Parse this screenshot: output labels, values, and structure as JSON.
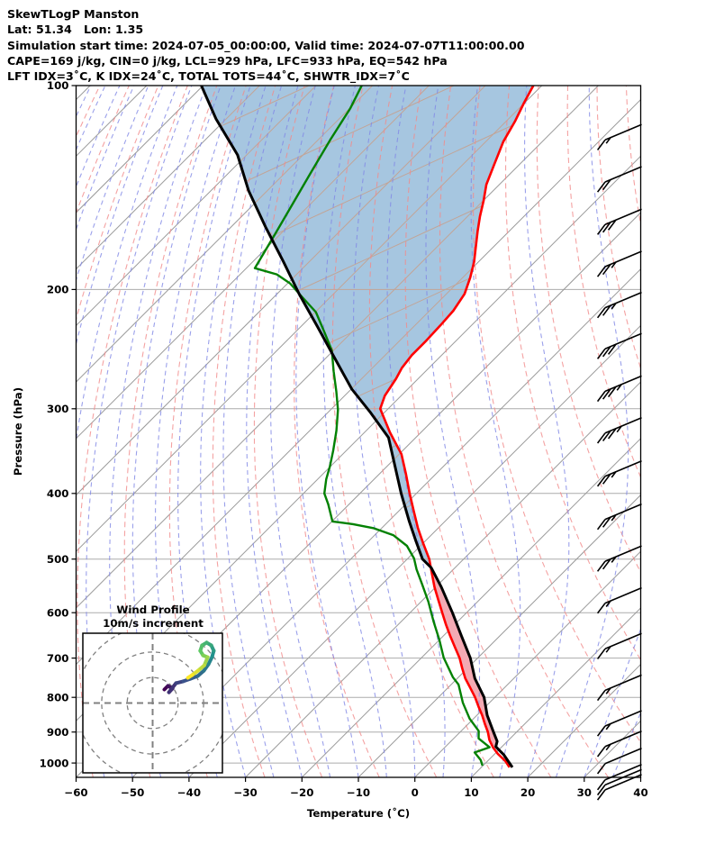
{
  "header": {
    "line1": "SkewTLogP Manston",
    "line2": "Lat: 51.34   Lon: 1.35",
    "line3": "Simulation start time: 2024-07-05_00:00:00, Valid time: 2024-07-07T11:00:00.00",
    "line4": "CAPE=169 j/kg, CIN=0 j/kg, LCL=929 hPa, LFC=933 hPa, EQ=542 hPa",
    "line5": "LFT IDX=3˚C, K IDX=24˚C, TOTAL TOTS=44˚C, SHWTR_IDX=7˚C"
  },
  "chart_data": {
    "type": "skewt-logp",
    "title": "SkewTLogP Manston",
    "xlabel": "Temperature (˚C)",
    "ylabel": "Pressure (hPa)",
    "x_ticks": [
      -60,
      -50,
      -40,
      -30,
      -20,
      -10,
      0,
      10,
      20,
      30,
      40
    ],
    "y_ticks": [
      100,
      200,
      300,
      400,
      500,
      600,
      700,
      800,
      900,
      1000
    ],
    "axes": {
      "T_min": -60,
      "T_max": 40,
      "p_top": 100,
      "p_bottom": 1050,
      "skew": "45deg-in-pixels",
      "grid": "on"
    },
    "indices": {
      "CAPE_jkg": 169,
      "CIN_jkg": 0,
      "LCL_hPa": 929,
      "LFC_hPa": 933,
      "EQ_hPa": 542,
      "LFT_IDX_C": 3,
      "K_IDX_C": 24,
      "TOTAL_TOTS_C": 44,
      "SHWTR_IDX_C": 7
    },
    "temperature_profile": [
      [
        100,
        -101.5
      ],
      [
        106,
        -100.1
      ],
      [
        113,
        -98.4
      ],
      [
        121,
        -96.9
      ],
      [
        131,
        -94.4
      ],
      [
        140,
        -92.3
      ],
      [
        148,
        -89.9
      ],
      [
        156,
        -87.8
      ],
      [
        164,
        -85.6
      ],
      [
        172,
        -83.4
      ],
      [
        182,
        -80.8
      ],
      [
        192,
        -78.7
      ],
      [
        203,
        -76.8
      ],
      [
        215,
        -75.8
      ],
      [
        226,
        -75.5
      ],
      [
        239,
        -75.3
      ],
      [
        250,
        -75.3
      ],
      [
        261,
        -74.8
      ],
      [
        271,
        -73.9
      ],
      [
        287,
        -72.9
      ],
      [
        300,
        -71.4
      ],
      [
        325,
        -65.5
      ],
      [
        350,
        -59.6
      ],
      [
        375,
        -55.2
      ],
      [
        400,
        -51.2
      ],
      [
        425,
        -47.3
      ],
      [
        450,
        -43.6
      ],
      [
        475,
        -39.8
      ],
      [
        500,
        -36.1
      ],
      [
        525,
        -33.1
      ],
      [
        550,
        -30.2
      ],
      [
        575,
        -27.2
      ],
      [
        600,
        -24.3
      ],
      [
        625,
        -21.5
      ],
      [
        650,
        -18.7
      ],
      [
        675,
        -15.9
      ],
      [
        700,
        -13.2
      ],
      [
        725,
        -10.9
      ],
      [
        750,
        -8.6
      ],
      [
        775,
        -6.0
      ],
      [
        800,
        -3.5
      ],
      [
        825,
        -1.3
      ],
      [
        850,
        0.9
      ],
      [
        875,
        2.9
      ],
      [
        900,
        4.9
      ],
      [
        925,
        6.6
      ],
      [
        948,
        8.5
      ],
      [
        970,
        10.6
      ],
      [
        993,
        13.1
      ],
      [
        1015,
        15.0
      ]
    ],
    "dewpoint_profile": [
      [
        100,
        -131.9
      ],
      [
        108,
        -129.9
      ],
      [
        120,
        -127.9
      ],
      [
        135,
        -125.4
      ],
      [
        150,
        -123.1
      ],
      [
        166,
        -120.9
      ],
      [
        186,
        -118.5
      ],
      [
        190,
        -113.5
      ],
      [
        196,
        -109.5
      ],
      [
        205,
        -105.1
      ],
      [
        216,
        -99.9
      ],
      [
        232,
        -94.6
      ],
      [
        246,
        -90.3
      ],
      [
        264,
        -86.3
      ],
      [
        283,
        -82.2
      ],
      [
        301,
        -78.7
      ],
      [
        323,
        -75.3
      ],
      [
        346,
        -72.3
      ],
      [
        365,
        -70.1
      ],
      [
        381,
        -68.5
      ],
      [
        400,
        -66.3
      ],
      [
        415,
        -63.7
      ],
      [
        440,
        -59.9
      ],
      [
        444,
        -55.8
      ],
      [
        450,
        -51.5
      ],
      [
        461,
        -46.7
      ],
      [
        478,
        -42.4
      ],
      [
        499,
        -38.9
      ],
      [
        518,
        -36.5
      ],
      [
        544,
        -33.0
      ],
      [
        578,
        -28.7
      ],
      [
        619,
        -24.2
      ],
      [
        658,
        -20.0
      ],
      [
        699,
        -16.1
      ],
      [
        747,
        -11.0
      ],
      [
        766,
        -8.7
      ],
      [
        815,
        -4.7
      ],
      [
        860,
        -0.7
      ],
      [
        897,
        3.1
      ],
      [
        920,
        4.4
      ],
      [
        948,
        7.9
      ],
      [
        965,
        6.2
      ],
      [
        990,
        8.6
      ],
      [
        1009,
        9.9
      ]
    ],
    "parcel_profile": [
      [
        100,
        -160.3
      ],
      [
        112,
        -151.8
      ],
      [
        126.6,
        -141.6
      ],
      [
        143,
        -133.3
      ],
      [
        161.7,
        -123.9
      ],
      [
        181.7,
        -114.7
      ],
      [
        203.5,
        -105.9
      ],
      [
        226.5,
        -97.2
      ],
      [
        252,
        -88.6
      ],
      [
        280.6,
        -79.9
      ],
      [
        304,
        -72.4
      ],
      [
        331,
        -64.8
      ],
      [
        363,
        -58.9
      ],
      [
        400,
        -52.7
      ],
      [
        440,
        -46.3
      ],
      [
        470,
        -41.7
      ],
      [
        500,
        -37.3
      ],
      [
        515,
        -34.2
      ],
      [
        550,
        -29.0
      ],
      [
        600,
        -22.5
      ],
      [
        650,
        -16.7
      ],
      [
        700,
        -11.3
      ],
      [
        750,
        -6.9
      ],
      [
        800,
        -1.9
      ],
      [
        850,
        1.8
      ],
      [
        900,
        5.9
      ],
      [
        929,
        8.2
      ],
      [
        946,
        8.9
      ],
      [
        973,
        11.8
      ],
      [
        1015,
        15.5
      ]
    ],
    "shade_regions": [
      {
        "name": "negative-area",
        "between": [
          "parcel_profile",
          "temperature_profile"
        ],
        "p_range": [
          100,
          508
        ],
        "color": "#a6c6e0"
      },
      {
        "name": "cape-area",
        "between": [
          "temperature_profile",
          "parcel_profile"
        ],
        "p_range": [
          508,
          946
        ],
        "color": "#f3aab4"
      }
    ],
    "wind_barbs": {
      "full_barb_mps": 10,
      "direction": "from-southwest",
      "levels": [
        {
          "p": 117,
          "speed": 15
        },
        {
          "p": 135,
          "speed": 20
        },
        {
          "p": 156,
          "speed": 30
        },
        {
          "p": 180,
          "speed": 25
        },
        {
          "p": 207,
          "speed": 25
        },
        {
          "p": 238,
          "speed": 30
        },
        {
          "p": 275,
          "speed": 35
        },
        {
          "p": 317,
          "speed": 35
        },
        {
          "p": 367,
          "speed": 25
        },
        {
          "p": 425,
          "speed": 25
        },
        {
          "p": 490,
          "speed": 25
        },
        {
          "p": 565,
          "speed": 15
        },
        {
          "p": 660,
          "speed": 15
        },
        {
          "p": 760,
          "speed": 15
        },
        {
          "p": 858,
          "speed": 15
        },
        {
          "p": 920,
          "speed": 15
        },
        {
          "p": 975,
          "speed": 10
        },
        {
          "p": 1030,
          "speed": 10
        },
        {
          "p": 1048,
          "speed": 10
        },
        {
          "p": 1066,
          "speed": 10
        }
      ]
    },
    "hodograph": {
      "title_line1": "Wind Profile",
      "title_line2": "10m/s increment",
      "ring_interval_mps": 10,
      "rings_mps": [
        10,
        20,
        30
      ],
      "trace_uv_mps": [
        [
          4.6,
          5.3
        ],
        [
          6.0,
          6.7
        ],
        [
          7.8,
          5.7
        ],
        [
          6.4,
          4.2
        ],
        [
          9.2,
          7.8
        ],
        [
          12.0,
          8.5
        ],
        [
          14.8,
          9.5
        ],
        [
          17.7,
          10.6
        ],
        [
          20.1,
          12.7
        ],
        [
          21.9,
          15.2
        ],
        [
          23.3,
          18.0
        ],
        [
          24.0,
          20.5
        ],
        [
          23.0,
          22.6
        ],
        [
          21.2,
          23.7
        ],
        [
          19.4,
          22.6
        ],
        [
          18.7,
          20.5
        ],
        [
          19.8,
          18.7
        ],
        [
          21.6,
          18.0
        ],
        [
          20.3,
          14.8
        ],
        [
          17.8,
          12.7
        ],
        [
          15.5,
          11.0
        ],
        [
          13.8,
          9.9
        ]
      ]
    },
    "colors": {
      "temperature": "#ff0000",
      "dewpoint": "#038103",
      "parcel": "#000000",
      "isotherm": "#9a9a9a",
      "pressure_grid": "#ababab",
      "dry_adiabat": "#f28b8b",
      "moist_adiabat": "#8289e6",
      "shade_blue": "#a6c6e0",
      "shade_pink": "#f3aab4",
      "shade_overlay_lines": "#c2a496",
      "barb": "#000000",
      "hodo_grid": "#808080"
    }
  }
}
